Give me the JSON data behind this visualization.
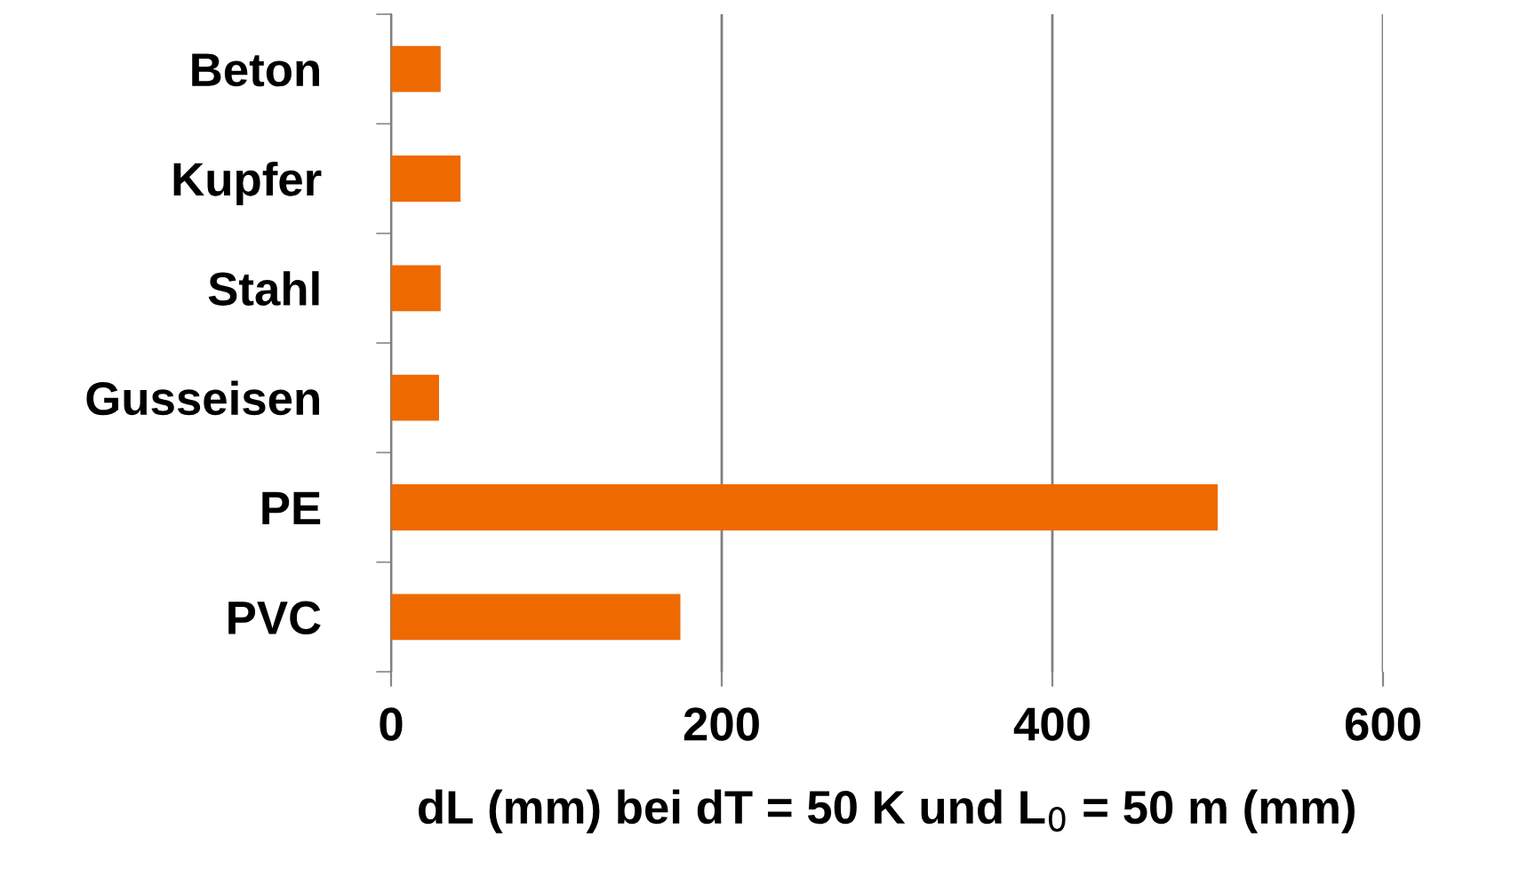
{
  "chart_data": {
    "type": "bar",
    "orientation": "horizontal",
    "categories": [
      "Beton",
      "Kupfer",
      "Stahl",
      "Gusseisen",
      "PE",
      "PVC"
    ],
    "values": [
      30,
      42,
      30,
      29,
      500,
      175
    ],
    "color": "#ee6a00",
    "xlabel": "dL (mm) bei dT = 50 K und L$_{0}$ = 50 m (mm)",
    "xlim": [
      0,
      600
    ],
    "xticks": [
      0,
      200,
      400,
      600
    ],
    "grid": "x",
    "legend": false
  }
}
